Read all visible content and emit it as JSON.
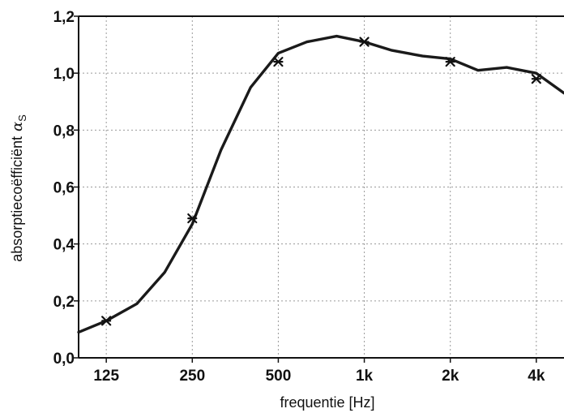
{
  "chart_data": {
    "type": "line",
    "xlabel": "frequentie [Hz]",
    "ylabel": "absorptiecoëfficiënt",
    "ylabel_symbol": "α",
    "ylabel_subscript": "S",
    "x_scale": "log",
    "xlim": [
      100,
      5000
    ],
    "ylim": [
      0,
      1.2
    ],
    "grid": true,
    "x_ticks": [
      {
        "value": 125,
        "label": "125"
      },
      {
        "value": 250,
        "label": "250"
      },
      {
        "value": 500,
        "label": "500"
      },
      {
        "value": 1000,
        "label": "1k"
      },
      {
        "value": 2000,
        "label": "2k"
      },
      {
        "value": 4000,
        "label": "4k"
      }
    ],
    "y_ticks": [
      {
        "value": 0.0,
        "label": "0,0"
      },
      {
        "value": 0.2,
        "label": "0,2"
      },
      {
        "value": 0.4,
        "label": "0,4"
      },
      {
        "value": 0.6,
        "label": "0,6"
      },
      {
        "value": 0.8,
        "label": "0,8"
      },
      {
        "value": 1.0,
        "label": "1,0"
      },
      {
        "value": 1.2,
        "label": "1,2"
      }
    ],
    "series": [
      {
        "line": {
          "x": [
            100,
            125,
            160,
            200,
            250,
            315,
            400,
            500,
            630,
            800,
            1000,
            1250,
            1600,
            2000,
            2500,
            3150,
            4000,
            5000
          ],
          "y": [
            0.09,
            0.13,
            0.19,
            0.3,
            0.47,
            0.73,
            0.95,
            1.07,
            1.11,
            1.13,
            1.11,
            1.08,
            1.06,
            1.05,
            1.01,
            1.02,
            1.0,
            0.93
          ]
        },
        "markers": {
          "x": [
            125,
            250,
            500,
            1000,
            2000,
            4000
          ],
          "y": [
            0.13,
            0.49,
            1.04,
            1.11,
            1.04,
            0.98
          ]
        }
      }
    ]
  }
}
